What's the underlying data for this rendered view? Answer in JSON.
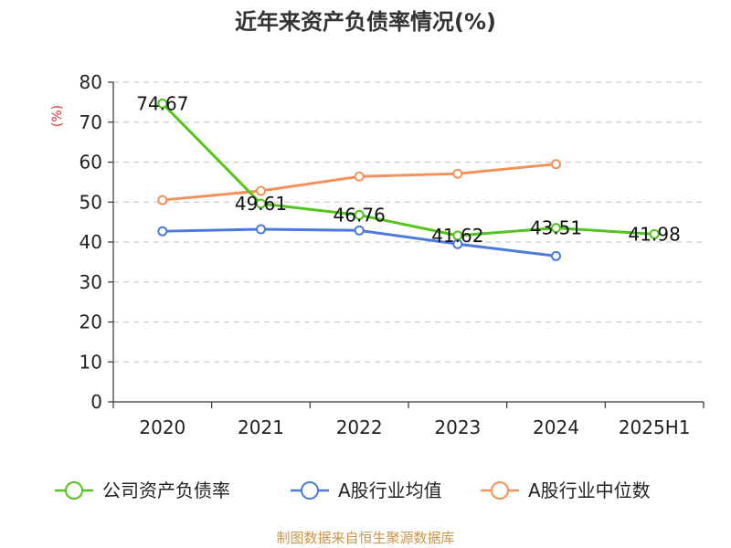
{
  "chart_data": {
    "type": "line",
    "title": "近年来资产负债率情况(%)",
    "ylabel": "(%)",
    "xlabel": "",
    "categories": [
      "2020",
      "2021",
      "2022",
      "2023",
      "2024",
      "2025H1"
    ],
    "ylim": [
      0,
      80
    ],
    "yticks": [
      0,
      10,
      20,
      30,
      40,
      50,
      60,
      70,
      80
    ],
    "grid": true,
    "legend_position": "bottom",
    "series": [
      {
        "name": "公司资产负债率",
        "color": "#52c41a",
        "values": [
          74.67,
          49.61,
          46.76,
          41.62,
          43.51,
          41.98
        ],
        "labels": [
          "74.67",
          "49.61",
          "46.76",
          "41.62",
          "43.51",
          "41.98"
        ]
      },
      {
        "name": "A股行业均值",
        "color": "#4a7bdc",
        "values": [
          42.7,
          43.2,
          42.9,
          39.5,
          36.5,
          null
        ]
      },
      {
        "name": "A股行业中位数",
        "color": "#f4915b",
        "values": [
          50.5,
          52.8,
          56.4,
          57.1,
          59.5,
          null
        ]
      }
    ],
    "source": "制图数据来自恒生聚源数据库"
  }
}
